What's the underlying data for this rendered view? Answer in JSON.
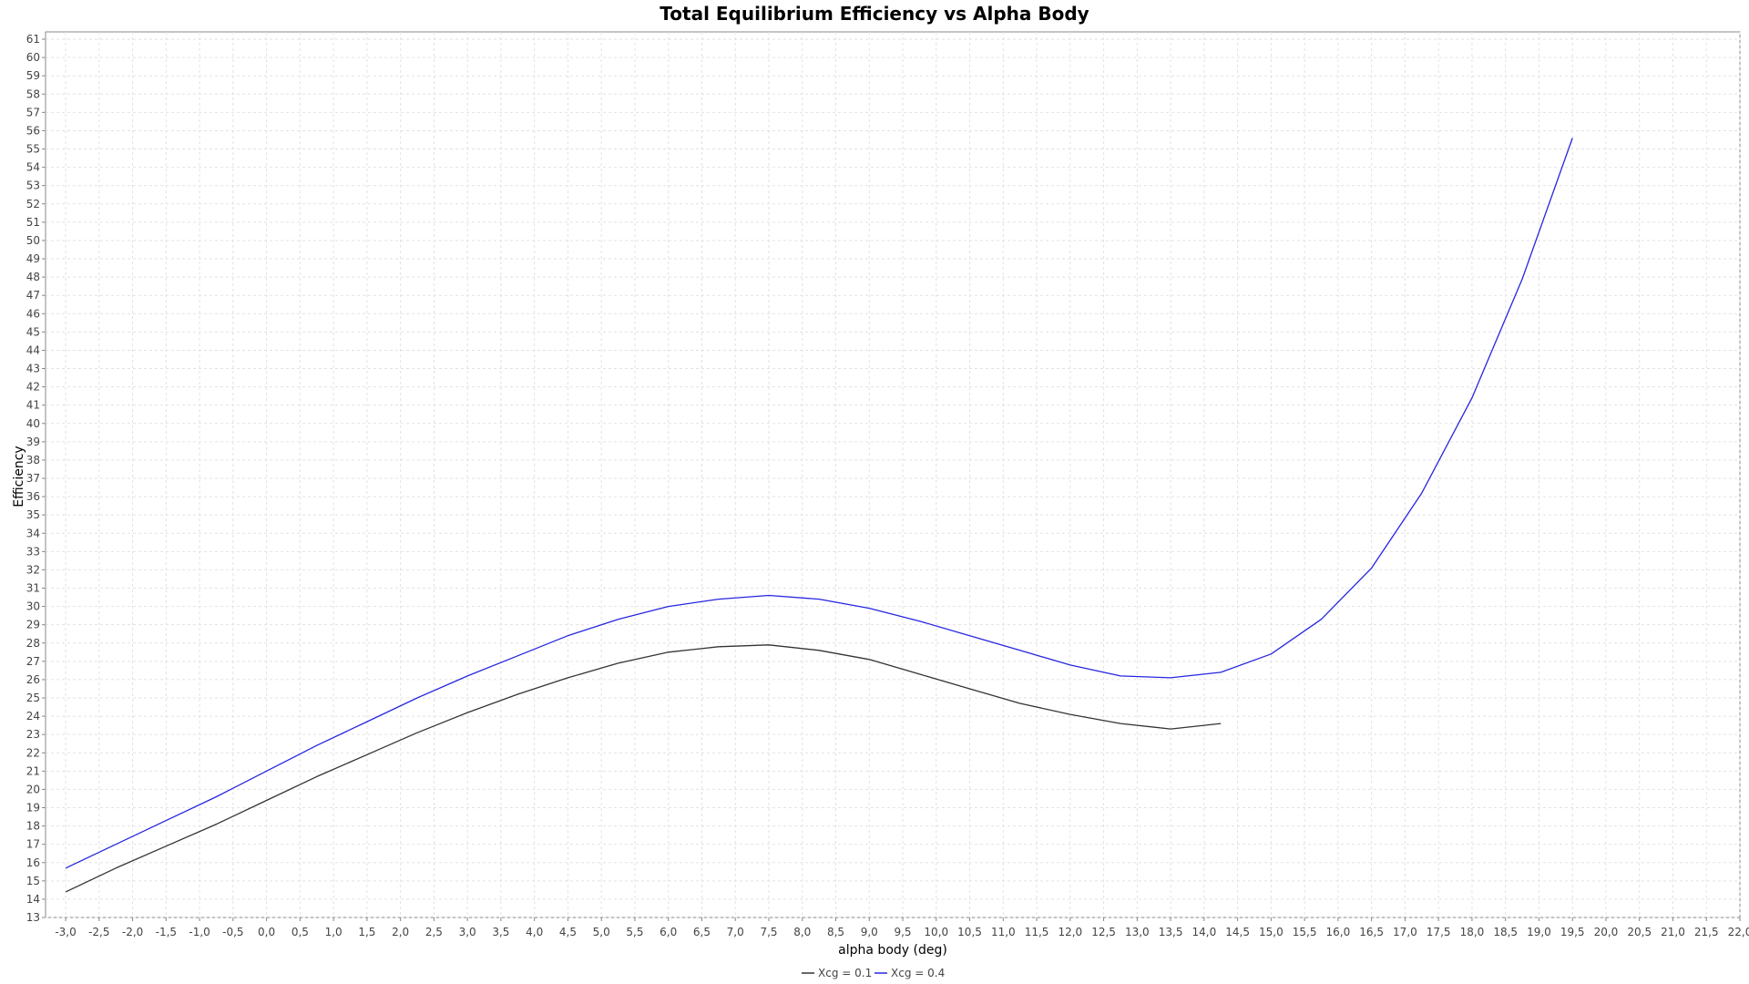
{
  "chart_data": {
    "type": "line",
    "title": "Total Equilibrium Efficiency vs Alpha Body",
    "xlabel": "alpha body (deg)",
    "ylabel": "Efficiency",
    "xlim": [
      -3.3,
      22.0
    ],
    "ylim": [
      13,
      61.4
    ],
    "x_ticks": [
      "-3,0",
      "-2,5",
      "-2,0",
      "-1,5",
      "-1,0",
      "-0,5",
      "0,0",
      "0,5",
      "1,0",
      "1,5",
      "2,0",
      "2,5",
      "3,0",
      "3,5",
      "4,0",
      "4,5",
      "5,0",
      "5,5",
      "6,0",
      "6,5",
      "7,0",
      "7,5",
      "8,0",
      "8,5",
      "9,0",
      "9,5",
      "10,0",
      "10,5",
      "11,0",
      "11,5",
      "12,0",
      "12,5",
      "13,0",
      "13,5",
      "14,0",
      "14,5",
      "15,0",
      "15,5",
      "16,0",
      "16,5",
      "17,0",
      "17,5",
      "18,0",
      "18,5",
      "19,0",
      "19,5",
      "20,0",
      "20,5",
      "21,0",
      "21,5",
      "22,0"
    ],
    "y_ticks": [
      "13",
      "14",
      "15",
      "16",
      "17",
      "18",
      "19",
      "20",
      "21",
      "22",
      "23",
      "24",
      "25",
      "26",
      "27",
      "28",
      "29",
      "30",
      "31",
      "32",
      "33",
      "34",
      "35",
      "36",
      "37",
      "38",
      "39",
      "40",
      "41",
      "42",
      "43",
      "44",
      "45",
      "46",
      "47",
      "48",
      "49",
      "50",
      "51",
      "52",
      "53",
      "54",
      "55",
      "56",
      "57",
      "58",
      "59",
      "60",
      "61"
    ],
    "grid": true,
    "legend_position": "bottom-center",
    "series": [
      {
        "name": "Xcg = 0.1",
        "color": "#333333",
        "x": [
          -3.0,
          -2.25,
          -1.5,
          -0.75,
          0.0,
          0.75,
          1.5,
          2.25,
          3.0,
          3.75,
          4.5,
          5.25,
          6.0,
          6.75,
          7.5,
          8.25,
          9.0,
          9.75,
          10.5,
          11.25,
          12.0,
          12.75,
          13.5,
          14.25
        ],
        "values": [
          14.4,
          15.7,
          16.9,
          18.1,
          19.4,
          20.7,
          21.9,
          23.1,
          24.2,
          25.2,
          26.1,
          26.9,
          27.5,
          27.8,
          27.9,
          27.6,
          27.1,
          26.3,
          25.5,
          24.7,
          24.1,
          23.6,
          23.3,
          23.6
        ]
      },
      {
        "name": "Xcg = 0.4",
        "color": "#2626e0",
        "x": [
          -3.0,
          -2.25,
          -1.5,
          -0.75,
          0.0,
          0.75,
          1.5,
          2.25,
          3.0,
          3.75,
          4.5,
          5.25,
          6.0,
          6.75,
          7.5,
          8.25,
          9.0,
          9.75,
          10.5,
          11.25,
          12.0,
          12.75,
          13.5,
          14.25,
          15.0,
          15.75,
          16.5,
          17.25,
          18.0,
          18.75,
          19.5
        ],
        "values": [
          15.7,
          17.0,
          18.3,
          19.6,
          21.0,
          22.4,
          23.7,
          25.0,
          26.2,
          27.3,
          28.4,
          29.3,
          30.0,
          30.4,
          30.6,
          30.4,
          29.9,
          29.2,
          28.4,
          27.6,
          26.8,
          26.2,
          26.1,
          26.4,
          27.4,
          29.3,
          32.1,
          36.2,
          41.4,
          47.9,
          55.6
        ]
      }
    ]
  }
}
